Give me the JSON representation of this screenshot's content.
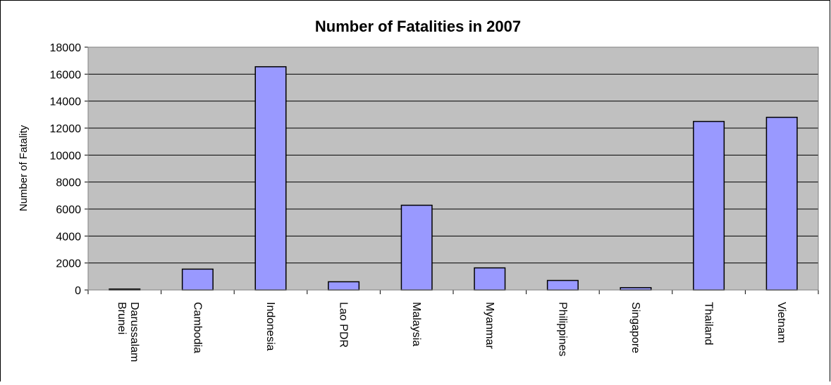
{
  "chart_data": {
    "type": "bar",
    "title": "Number of Fatalities in 2007",
    "xlabel": "",
    "ylabel": "Number of Fatality",
    "categories": [
      [
        "Brunei",
        "Darussalam"
      ],
      [
        "Cambodia"
      ],
      [
        "Indonesia"
      ],
      [
        "Lao PDR"
      ],
      [
        "Malaysia"
      ],
      [
        "Myanmar"
      ],
      [
        "Philippines"
      ],
      [
        "Singapore"
      ],
      [
        "Thailand"
      ],
      [
        "Vietnam"
      ]
    ],
    "values": [
      70,
      1545,
      16548,
      608,
      6282,
      1638,
      705,
      173,
      12492,
      12800
    ],
    "ylim": [
      0,
      18000
    ],
    "yticks": [
      0,
      2000,
      4000,
      6000,
      8000,
      10000,
      12000,
      14000,
      16000,
      18000
    ],
    "grid": true,
    "legend": "none",
    "colors": {
      "bar": "#9999ff",
      "bar_stroke": "#000000",
      "plot_bg": "#c0c0c0",
      "page_bg": "#ffffff",
      "grid": "#000000",
      "text": "#000000"
    }
  }
}
